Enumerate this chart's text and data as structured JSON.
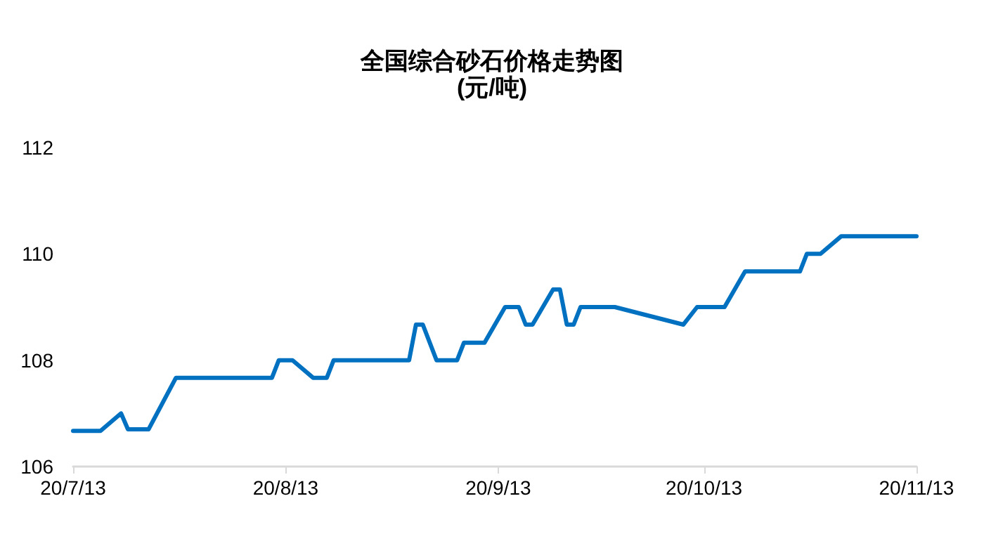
{
  "chart_data": {
    "type": "line",
    "title": "全国综合砂石价格走势图",
    "subtitle": "(元/吨)",
    "x": [
      "--07-13",
      "--07-17",
      "--07-20",
      "--07-21",
      "--07-24",
      "--07-28",
      "--08-11",
      "--08-12",
      "--08-14",
      "--08-17",
      "--08-19",
      "--08-20",
      "--08-31",
      "--09-01",
      "--09-02",
      "--09-04",
      "--09-07",
      "--09-08",
      "--09-11",
      "--09-14",
      "--09-16",
      "--09-17",
      "--09-18",
      "--09-21",
      "--09-22",
      "--09-23",
      "--09-24",
      "--09-25",
      "--09-30",
      "--10-10",
      "--10-12",
      "--10-16",
      "--10-19",
      "--10-27",
      "--10-28",
      "--10-30",
      "--11-02",
      "--11-13"
    ],
    "series": [
      {
        "color": "#0070c0",
        "values": [
          106.67,
          106.67,
          107.0,
          106.7,
          106.7,
          107.67,
          107.67,
          108.0,
          108.0,
          107.67,
          107.67,
          108.0,
          108.0,
          108.67,
          108.67,
          108.0,
          108.0,
          108.33,
          108.33,
          109.0,
          109.0,
          108.67,
          108.67,
          109.33,
          109.33,
          108.67,
          108.67,
          109.0,
          109.0,
          108.67,
          109.0,
          109.0,
          109.67,
          109.67,
          110.0,
          110.0,
          110.33,
          110.33
        ]
      }
    ],
    "ylim": [
      106,
      112
    ],
    "yticks": [
      106,
      108,
      110,
      112
    ],
    "xlim": [
      "--07-13",
      "--11-13"
    ],
    "xticks": [
      {
        "value": "--07-13",
        "label": "20/7/13"
      },
      {
        "value": "--08-13",
        "label": "20/8/13"
      },
      {
        "value": "--09-13",
        "label": "20/9/13"
      },
      {
        "value": "--10-13",
        "label": "20/10/13"
      },
      {
        "value": "--11-13",
        "label": "20/11/13"
      }
    ],
    "grid": false,
    "marker": "none",
    "line_style": "solid"
  }
}
